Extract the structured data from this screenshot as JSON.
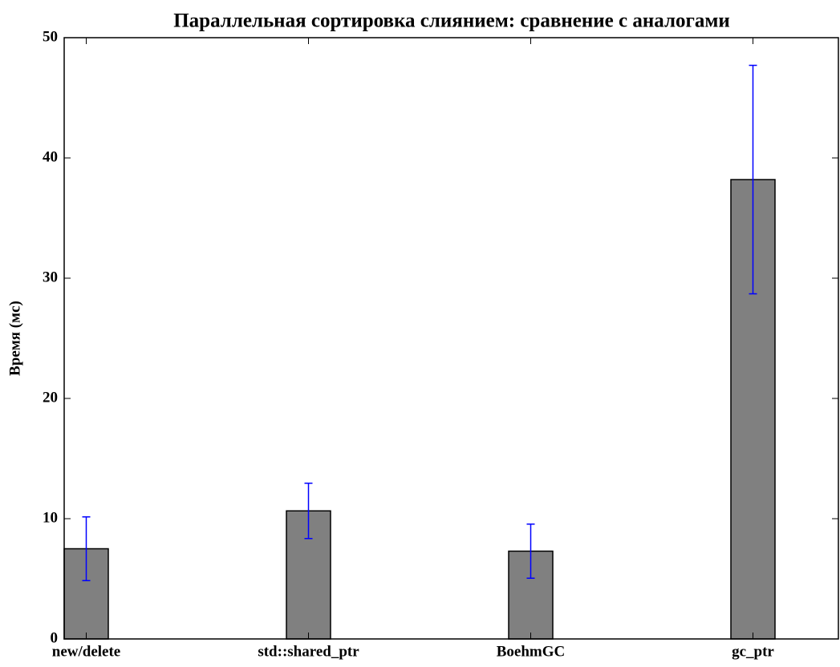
{
  "chart_data": {
    "type": "bar",
    "title": "Параллельная сортировка слиянием: сравнение с аналогами",
    "y_label": "Время (мс)",
    "categories": [
      "new/delete",
      "std::shared_ptr",
      "BoehmGC",
      "gc_ptr"
    ],
    "values": [
      7.5,
      10.65,
      7.3,
      38.2
    ],
    "errors": [
      2.65,
      2.3,
      2.25,
      9.5
    ],
    "color": "#808080",
    "error_color": "#0000ff",
    "ylim": [
      0,
      50
    ],
    "yticks": [
      0,
      10,
      20,
      30,
      40,
      50
    ]
  }
}
